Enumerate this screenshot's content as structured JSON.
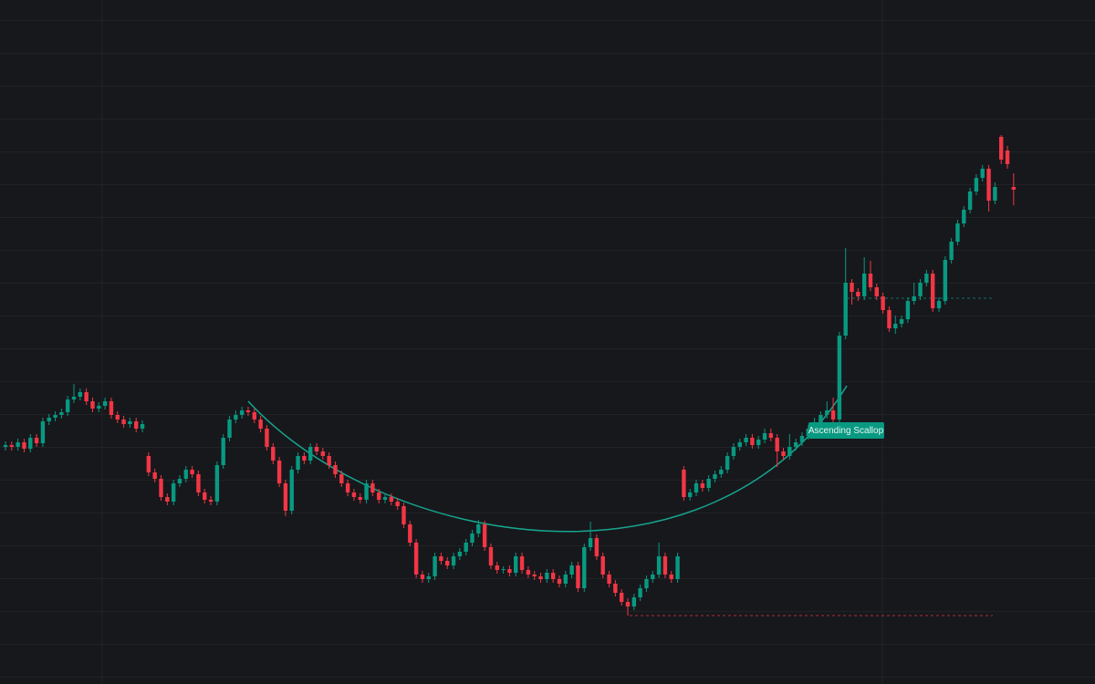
{
  "chart_data": {
    "type": "candlestick",
    "annotation": "Ascending Scallop",
    "up_color": "#089981",
    "down_color": "#f23645",
    "ylim": [
      0,
      75
    ],
    "levels": [
      7.5,
      42.3
    ],
    "ohlc": [
      [
        26.0,
        26.6,
        25.6,
        26.2
      ],
      [
        26.2,
        26.6,
        25.6,
        26.0
      ],
      [
        26.0,
        26.9,
        25.6,
        26.5
      ],
      [
        26.5,
        26.9,
        25.4,
        25.8
      ],
      [
        25.8,
        27.4,
        25.4,
        27.0
      ],
      [
        27.0,
        27.4,
        26.0,
        26.4
      ],
      [
        26.4,
        29.2,
        26.0,
        28.8
      ],
      [
        28.8,
        29.6,
        28.4,
        29.2
      ],
      [
        29.2,
        29.9,
        28.8,
        29.5
      ],
      [
        29.5,
        30.2,
        29.1,
        29.8
      ],
      [
        29.8,
        31.6,
        29.4,
        31.2
      ],
      [
        31.2,
        32.9,
        30.8,
        31.5
      ],
      [
        31.5,
        32.4,
        31.1,
        32.0
      ],
      [
        32.0,
        32.4,
        30.6,
        31.0
      ],
      [
        31.0,
        31.4,
        29.8,
        30.2
      ],
      [
        30.2,
        30.9,
        29.8,
        30.5
      ],
      [
        30.5,
        31.4,
        30.1,
        31.0
      ],
      [
        31.0,
        31.4,
        29.1,
        29.5
      ],
      [
        29.5,
        29.9,
        28.6,
        29.0
      ],
      [
        29.0,
        29.4,
        28.1,
        28.5
      ],
      [
        28.5,
        29.2,
        28.1,
        28.8
      ],
      [
        28.8,
        29.2,
        27.6,
        28.0
      ],
      [
        28.0,
        28.9,
        27.6,
        28.5
      ],
      [
        25.0,
        25.4,
        22.8,
        23.2
      ],
      [
        23.2,
        23.6,
        22.1,
        22.5
      ],
      [
        22.5,
        22.9,
        20.1,
        20.5
      ],
      [
        20.5,
        20.9,
        19.6,
        20.0
      ],
      [
        20.0,
        22.4,
        19.6,
        22.0
      ],
      [
        22.0,
        22.9,
        21.6,
        22.5
      ],
      [
        22.5,
        23.9,
        22.1,
        23.5
      ],
      [
        23.5,
        23.9,
        22.6,
        23.0
      ],
      [
        23.0,
        23.4,
        20.6,
        21.0
      ],
      [
        21.0,
        21.4,
        19.8,
        20.2
      ],
      [
        20.2,
        20.6,
        19.6,
        20.0
      ],
      [
        20.0,
        24.4,
        19.6,
        24.0
      ],
      [
        24.0,
        27.4,
        23.6,
        27.0
      ],
      [
        27.0,
        29.4,
        26.6,
        29.0
      ],
      [
        29.0,
        30.0,
        28.6,
        29.5
      ],
      [
        29.5,
        30.4,
        29.1,
        30.0
      ],
      [
        30.0,
        30.4,
        29.4,
        29.8
      ],
      [
        29.8,
        30.2,
        28.6,
        29.0
      ],
      [
        29.0,
        29.4,
        27.6,
        28.0
      ],
      [
        28.0,
        28.4,
        25.6,
        26.0
      ],
      [
        26.0,
        26.4,
        24.1,
        24.5
      ],
      [
        24.5,
        24.9,
        21.6,
        22.0
      ],
      [
        22.0,
        22.4,
        18.4,
        19.0
      ],
      [
        19.0,
        23.9,
        18.6,
        23.5
      ],
      [
        23.5,
        25.4,
        23.1,
        25.0
      ],
      [
        25.0,
        25.4,
        24.1,
        24.5
      ],
      [
        24.5,
        26.4,
        24.1,
        26.0
      ],
      [
        26.0,
        26.4,
        25.1,
        25.5
      ],
      [
        25.5,
        25.9,
        24.6,
        25.0
      ],
      [
        25.0,
        25.4,
        23.6,
        24.0
      ],
      [
        24.0,
        24.4,
        22.6,
        23.0
      ],
      [
        23.0,
        23.4,
        21.6,
        22.0
      ],
      [
        22.0,
        22.4,
        20.6,
        21.0
      ],
      [
        21.0,
        21.4,
        20.1,
        20.5
      ],
      [
        20.5,
        20.9,
        19.8,
        20.2
      ],
      [
        20.2,
        22.4,
        19.8,
        22.0
      ],
      [
        22.0,
        22.4,
        20.6,
        21.0
      ],
      [
        21.0,
        21.4,
        19.8,
        20.2
      ],
      [
        20.2,
        20.9,
        19.8,
        20.5
      ],
      [
        20.5,
        20.9,
        19.6,
        20.0
      ],
      [
        20.0,
        20.4,
        19.1,
        19.5
      ],
      [
        19.5,
        19.9,
        17.1,
        17.5
      ],
      [
        17.5,
        17.9,
        15.1,
        15.5
      ],
      [
        15.5,
        15.9,
        11.6,
        12.0
      ],
      [
        12.0,
        12.4,
        11.1,
        11.5
      ],
      [
        11.5,
        12.2,
        11.1,
        11.8
      ],
      [
        11.8,
        14.4,
        11.4,
        14.0
      ],
      [
        14.0,
        14.4,
        13.1,
        13.5
      ],
      [
        13.5,
        13.9,
        12.6,
        13.0
      ],
      [
        13.0,
        14.4,
        12.6,
        14.0
      ],
      [
        14.0,
        14.9,
        13.6,
        14.5
      ],
      [
        14.5,
        15.9,
        14.1,
        15.5
      ],
      [
        15.5,
        16.9,
        15.1,
        16.5
      ],
      [
        16.5,
        18.0,
        16.1,
        17.5
      ],
      [
        17.5,
        17.9,
        14.6,
        15.0
      ],
      [
        15.0,
        15.4,
        12.6,
        13.0
      ],
      [
        13.0,
        13.4,
        12.1,
        12.5
      ],
      [
        12.5,
        12.9,
        12.1,
        12.6
      ],
      [
        12.6,
        13.0,
        11.8,
        12.2
      ],
      [
        12.2,
        14.4,
        11.8,
        14.0
      ],
      [
        14.0,
        14.4,
        12.1,
        12.5
      ],
      [
        12.5,
        12.9,
        11.6,
        12.0
      ],
      [
        12.0,
        12.4,
        11.4,
        11.8
      ],
      [
        11.8,
        12.2,
        11.1,
        11.5
      ],
      [
        11.5,
        12.6,
        11.1,
        12.2
      ],
      [
        12.2,
        12.6,
        11.1,
        11.5
      ],
      [
        11.5,
        11.9,
        10.6,
        11.0
      ],
      [
        11.0,
        12.4,
        10.6,
        12.0
      ],
      [
        12.0,
        13.4,
        11.6,
        13.0
      ],
      [
        13.0,
        13.4,
        10.1,
        10.5
      ],
      [
        10.5,
        15.4,
        10.1,
        15.0
      ],
      [
        15.0,
        17.8,
        14.6,
        16.0
      ],
      [
        16.0,
        16.4,
        13.6,
        14.0
      ],
      [
        14.0,
        14.4,
        11.6,
        12.0
      ],
      [
        12.0,
        12.4,
        10.6,
        11.0
      ],
      [
        11.0,
        11.4,
        9.6,
        10.0
      ],
      [
        10.0,
        10.4,
        8.6,
        9.0
      ],
      [
        9.0,
        9.4,
        7.5,
        8.5
      ],
      [
        8.5,
        9.9,
        8.1,
        9.5
      ],
      [
        9.5,
        10.9,
        9.1,
        10.5
      ],
      [
        10.5,
        11.9,
        10.1,
        11.5
      ],
      [
        11.5,
        12.4,
        11.1,
        12.0
      ],
      [
        12.0,
        15.5,
        11.6,
        14.0
      ],
      [
        14.0,
        14.4,
        11.6,
        12.0
      ],
      [
        12.0,
        12.4,
        11.1,
        11.5
      ],
      [
        11.5,
        14.4,
        11.1,
        14.0
      ],
      [
        23.5,
        23.9,
        20.1,
        20.5
      ],
      [
        20.5,
        21.4,
        20.1,
        21.0
      ],
      [
        21.0,
        22.4,
        20.6,
        22.0
      ],
      [
        22.0,
        22.4,
        21.1,
        21.5
      ],
      [
        21.5,
        22.9,
        21.1,
        22.5
      ],
      [
        22.5,
        23.4,
        22.1,
        23.0
      ],
      [
        23.0,
        23.9,
        22.6,
        23.5
      ],
      [
        23.5,
        25.4,
        23.1,
        25.0
      ],
      [
        25.0,
        26.4,
        24.6,
        26.0
      ],
      [
        26.0,
        26.9,
        25.6,
        26.5
      ],
      [
        26.5,
        27.4,
        26.1,
        27.0
      ],
      [
        27.0,
        27.4,
        25.8,
        26.2
      ],
      [
        26.2,
        27.2,
        25.8,
        26.8
      ],
      [
        26.8,
        28.0,
        26.4,
        27.5
      ],
      [
        27.5,
        28.0,
        26.6,
        27.0
      ],
      [
        27.0,
        27.4,
        23.8,
        25.5
      ],
      [
        25.5,
        25.9,
        24.6,
        25.0
      ],
      [
        25.0,
        27.4,
        24.6,
        26.0
      ],
      [
        26.0,
        26.9,
        25.6,
        26.5
      ],
      [
        26.5,
        27.6,
        26.1,
        27.2
      ],
      [
        27.2,
        28.4,
        26.8,
        28.0
      ],
      [
        28.0,
        29.2,
        27.6,
        28.5
      ],
      [
        28.5,
        29.9,
        28.1,
        29.5
      ],
      [
        29.5,
        31.0,
        29.1,
        30.0
      ],
      [
        30.0,
        31.4,
        28.6,
        29.0
      ],
      [
        29.0,
        38.6,
        28.6,
        38.2
      ],
      [
        38.2,
        47.8,
        37.8,
        44.0
      ],
      [
        44.0,
        44.4,
        41.6,
        43.0
      ],
      [
        43.0,
        43.4,
        42.0,
        42.5
      ],
      [
        42.5,
        46.8,
        42.1,
        45.0
      ],
      [
        45.0,
        46.4,
        43.1,
        43.5
      ],
      [
        43.5,
        43.9,
        42.1,
        42.5
      ],
      [
        42.5,
        42.9,
        40.6,
        41.0
      ],
      [
        41.0,
        41.4,
        38.6,
        39.0
      ],
      [
        39.0,
        40.4,
        38.4,
        39.5
      ],
      [
        39.5,
        40.4,
        39.1,
        40.0
      ],
      [
        40.0,
        42.4,
        39.6,
        42.0
      ],
      [
        42.0,
        44.0,
        41.6,
        42.5
      ],
      [
        42.5,
        44.4,
        42.1,
        44.0
      ],
      [
        44.0,
        45.4,
        43.6,
        45.0
      ],
      [
        45.0,
        45.4,
        40.8,
        41.2
      ],
      [
        41.2,
        42.4,
        40.8,
        42.0
      ],
      [
        42.0,
        46.9,
        41.6,
        46.5
      ],
      [
        46.5,
        48.9,
        46.1,
        48.5
      ],
      [
        48.5,
        50.9,
        48.1,
        50.5
      ],
      [
        50.5,
        52.4,
        50.1,
        52.0
      ],
      [
        52.0,
        54.4,
        51.6,
        54.0
      ],
      [
        54.0,
        55.9,
        53.6,
        55.5
      ],
      [
        55.5,
        56.9,
        55.1,
        56.5
      ],
      [
        56.5,
        56.9,
        51.8,
        53.0
      ],
      [
        53.0,
        55.0,
        52.6,
        54.5
      ],
      [
        60.0,
        60.2,
        57.0,
        57.5
      ],
      [
        58.5,
        59.0,
        56.5,
        57.0
      ],
      [
        54.5,
        56.0,
        52.5,
        54.2
      ]
    ]
  }
}
